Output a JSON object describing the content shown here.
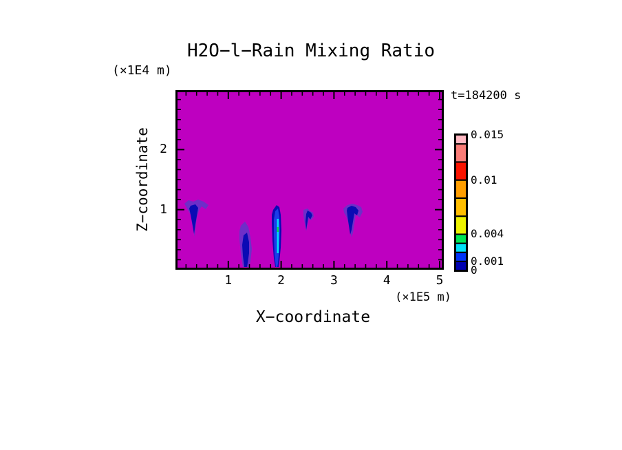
{
  "title": "H2O−l−Rain Mixing Ratio",
  "timestamp": "t=184200 s",
  "axes": {
    "x_label": "X−coordinate",
    "x_unit": "(×1E5 m)",
    "z_label": "Z−coordinate",
    "z_unit": "(×1E4 m)",
    "x_major_ticks": [
      "1",
      "2",
      "3",
      "4",
      "5"
    ],
    "z_major_ticks": [
      "1",
      "2"
    ]
  },
  "colorbar": {
    "max": 0.015,
    "labels": [
      {
        "text": "0.015",
        "value": 0.015
      },
      {
        "text": "0.01",
        "value": 0.01
      },
      {
        "text": "0.004",
        "value": 0.004
      },
      {
        "text": "0.001",
        "value": 0.001
      },
      {
        "text": "0",
        "value": 0
      }
    ],
    "segments": [
      {
        "from": 0.0,
        "to": 0.001,
        "color": "#0000B0"
      },
      {
        "from": 0.001,
        "to": 0.002,
        "color": "#0033F8"
      },
      {
        "from": 0.002,
        "to": 0.003,
        "color": "#00E1F8"
      },
      {
        "from": 0.003,
        "to": 0.004,
        "color": "#00E655"
      },
      {
        "from": 0.004,
        "to": 0.006,
        "color": "#EDF200"
      },
      {
        "from": 0.006,
        "to": 0.008,
        "color": "#FFBE00"
      },
      {
        "from": 0.008,
        "to": 0.01,
        "color": "#FF9E00"
      },
      {
        "from": 0.01,
        "to": 0.012,
        "color": "#F91400"
      },
      {
        "from": 0.012,
        "to": 0.014,
        "color": "#FA7D78"
      },
      {
        "from": 0.014,
        "to": 0.015,
        "color": "#FFB9C3"
      }
    ]
  },
  "chart_data": {
    "type": "heatmap",
    "title": "H2O−l−Rain Mixing Ratio",
    "time_annotation": "t=184200 s",
    "xlabel": "X−coordinate",
    "xlabel_units": "(×1E5 m)",
    "ylabel": "Z−coordinate",
    "ylabel_units": "(×1E4 m)",
    "xlim": [
      0,
      5.08
    ],
    "ylim": [
      0,
      2.98
    ],
    "x_ticks": [
      1,
      2,
      3,
      4,
      5
    ],
    "x_minor_step": 0.2,
    "y_ticks": [
      1,
      2
    ],
    "y_minor_step": 0.1666667,
    "legend_position": "right-colorbar",
    "grid": false,
    "colorbar_levels": [
      0,
      0.001,
      0.002,
      0.003,
      0.004,
      0.006,
      0.008,
      0.01,
      0.012,
      0.014,
      0.015
    ],
    "colorbar_labeled_levels": [
      "0",
      "0.001",
      "0.004",
      "0.01",
      "0.015"
    ],
    "field_background": "mixing ratio ≈ 0 (magenta fill) over almost the entire domain",
    "features": [
      {
        "kind": "rain-shaft",
        "x_center": 0.37,
        "z_top": 1.17,
        "z_bottom": 0.54,
        "peak_level": "0.001–0.002"
      },
      {
        "kind": "rain-shaft",
        "x_center": 1.33,
        "z_top": 0.8,
        "z_bottom": 0.0,
        "peak_level": "0.001–0.002"
      },
      {
        "kind": "rain-shaft",
        "x_center": 1.94,
        "z_top": 1.08,
        "z_bottom": 0.0,
        "peak_level": "0.002–0.003 (cyan core)"
      },
      {
        "kind": "rain-shaft",
        "x_center": 2.55,
        "z_top": 1.02,
        "z_bottom": 0.63,
        "peak_level": "0.001–0.002"
      },
      {
        "kind": "rain-shaft",
        "x_center": 3.38,
        "z_top": 1.1,
        "z_bottom": 0.54,
        "peak_level": "0.001–0.002"
      }
    ]
  },
  "render": {
    "background_color": "#BE00C0",
    "fringe_color": "#6E2EC8",
    "core_color": "#0A0AB4",
    "features": [
      {
        "name": "rain-shaft-1-fringe",
        "color": "#6E2EC8",
        "points": [
          [
            13,
            165
          ],
          [
            19,
            160
          ],
          [
            26,
            162
          ],
          [
            33,
            159
          ],
          [
            41,
            162
          ],
          [
            48,
            167
          ],
          [
            44,
            173
          ],
          [
            38,
            169
          ],
          [
            34,
            175
          ],
          [
            31,
            185
          ],
          [
            29,
            201
          ],
          [
            28,
            213
          ],
          [
            25,
            199
          ],
          [
            22,
            181
          ],
          [
            17,
            172
          ]
        ]
      },
      {
        "name": "rain-shaft-1-core",
        "color": "#0A0AB4",
        "points": [
          [
            22,
            168
          ],
          [
            29,
            166
          ],
          [
            33,
            171
          ],
          [
            31,
            183
          ],
          [
            29,
            195
          ],
          [
            27,
            209
          ],
          [
            25,
            197
          ],
          [
            22,
            181
          ],
          [
            20,
            172
          ]
        ]
      },
      {
        "name": "rain-shaft-2-fringe",
        "color": "#6E2EC8",
        "points": [
          [
            95,
            197
          ],
          [
            101,
            191
          ],
          [
            106,
            199
          ],
          [
            109,
            214
          ],
          [
            111,
            231
          ],
          [
            109,
            249
          ],
          [
            107,
            257
          ],
          [
            98,
            257
          ],
          [
            95,
            237
          ],
          [
            93,
            217
          ],
          [
            93,
            205
          ]
        ]
      },
      {
        "name": "rain-shaft-2-core",
        "color": "#0A0AB4",
        "points": [
          [
            99,
            211
          ],
          [
            104,
            207
          ],
          [
            107,
            221
          ],
          [
            107,
            237
          ],
          [
            105,
            251
          ],
          [
            104,
            257
          ],
          [
            100,
            257
          ],
          [
            98,
            241
          ],
          [
            97,
            225
          ]
        ]
      },
      {
        "name": "rain-shaft-3-outer",
        "color": "#0A0AB4",
        "points": [
          [
            142,
            174
          ],
          [
            147,
            167
          ],
          [
            151,
            170
          ],
          [
            153,
            181
          ],
          [
            154,
            204
          ],
          [
            153,
            229
          ],
          [
            151,
            249
          ],
          [
            150,
            257
          ],
          [
            145,
            257
          ],
          [
            143,
            244
          ],
          [
            141,
            219
          ],
          [
            140,
            194
          ],
          [
            140,
            181
          ]
        ]
      },
      {
        "name": "rain-shaft-3-blue",
        "color": "#1C3CE8",
        "points": [
          [
            145,
            176
          ],
          [
            149,
            172
          ],
          [
            151,
            184
          ],
          [
            152,
            204
          ],
          [
            151,
            229
          ],
          [
            149,
            252
          ],
          [
            148,
            257
          ],
          [
            146,
            257
          ],
          [
            144,
            240
          ],
          [
            143,
            210
          ],
          [
            143,
            188
          ]
        ]
      },
      {
        "name": "rain-shaft-3-cyan",
        "color": "#00E1F8",
        "points": [
          [
            147.5,
            187
          ],
          [
            150,
            187
          ],
          [
            150,
            237
          ],
          [
            147.5,
            237
          ]
        ]
      },
      {
        "name": "rain-shaft-3-green",
        "color": "#00E655",
        "points": [
          [
            147.5,
            199
          ],
          [
            150,
            199
          ],
          [
            150,
            206
          ],
          [
            147.5,
            206
          ]
        ]
      },
      {
        "name": "rain-shaft-4-fringe",
        "color": "#6E2EC8",
        "points": [
          [
            186,
            174
          ],
          [
            192,
            172
          ],
          [
            196,
            176
          ],
          [
            200,
            178
          ],
          [
            201,
            184
          ],
          [
            197,
            189
          ],
          [
            194,
            186
          ],
          [
            192,
            195
          ],
          [
            190,
            205
          ],
          [
            188,
            194
          ],
          [
            186,
            182
          ]
        ]
      },
      {
        "name": "rain-shaft-4-core",
        "color": "#0A0AB4",
        "points": [
          [
            192,
            175
          ],
          [
            197,
            178
          ],
          [
            199,
            182
          ],
          [
            196,
            188
          ],
          [
            193,
            184
          ],
          [
            191,
            197
          ],
          [
            190,
            203
          ],
          [
            189,
            191
          ],
          [
            190,
            180
          ]
        ]
      },
      {
        "name": "rain-shaft-5-fringe",
        "color": "#6E2EC8",
        "points": [
          [
            244,
            172
          ],
          [
            250,
            167
          ],
          [
            257,
            165
          ],
          [
            264,
            167
          ],
          [
            270,
            170
          ],
          [
            272,
            177
          ],
          [
            268,
            185
          ],
          [
            262,
            181
          ],
          [
            260,
            194
          ],
          [
            258,
            207
          ],
          [
            256,
            214
          ],
          [
            253,
            199
          ],
          [
            249,
            185
          ],
          [
            245,
            178
          ]
        ]
      },
      {
        "name": "rain-shaft-5-core",
        "color": "#0A0AB4",
        "points": [
          [
            250,
            171
          ],
          [
            256,
            168
          ],
          [
            262,
            170
          ],
          [
            266,
            175
          ],
          [
            264,
            182
          ],
          [
            260,
            179
          ],
          [
            258,
            191
          ],
          [
            256,
            203
          ],
          [
            254,
            210
          ],
          [
            252,
            197
          ],
          [
            250,
            183
          ],
          [
            249,
            175
          ]
        ]
      }
    ]
  }
}
